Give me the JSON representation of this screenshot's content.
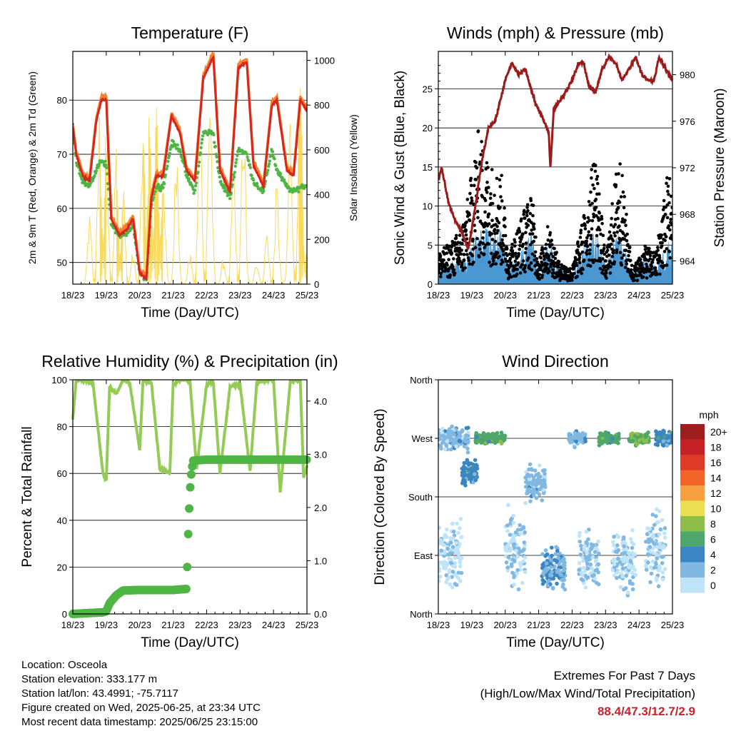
{
  "x_tick_labels": [
    "18/23",
    "19/23",
    "20/23",
    "21/23",
    "22/23",
    "23/23",
    "24/23",
    "25/23"
  ],
  "chart_data": [
    {
      "type": "line",
      "title": "Temperature (F)",
      "xlabel": "Time (Day/UTC)",
      "ylabel": "2m & 9m T (Red, Orange) & 2m Td (Green)",
      "y2label": "Solar Insolation (Yellow)",
      "xlim": [
        0,
        7
      ],
      "ylim": [
        46,
        89
      ],
      "y2lim": [
        0,
        1040
      ],
      "yticks": [
        50,
        60,
        70,
        80
      ],
      "y2ticks": [
        0,
        200,
        400,
        600,
        800,
        1000
      ],
      "grid": true,
      "colors": {
        "t2m": "#d7261e",
        "t9m": "#f2822f",
        "td": "#4fb544",
        "solar": "#f7d64a"
      },
      "series": [
        {
          "name": "2m T",
          "axis": "left",
          "x": [
            0,
            0.1,
            0.3,
            0.5,
            0.7,
            0.85,
            1.0,
            1.15,
            1.4,
            1.6,
            1.8,
            2.0,
            2.2,
            2.35,
            2.5,
            2.7,
            2.95,
            3.2,
            3.4,
            3.65,
            3.9,
            4.2,
            4.4,
            4.7,
            4.95,
            5.2,
            5.4,
            5.7,
            5.95,
            6.1,
            6.4,
            6.6,
            6.8,
            7.0
          ],
          "y": [
            75,
            70,
            66,
            65,
            76,
            80,
            80,
            58,
            55,
            56,
            58,
            48,
            47,
            62,
            66,
            66,
            77,
            74,
            67,
            65,
            84,
            88,
            67,
            63,
            86,
            87,
            68,
            64,
            79,
            80,
            67,
            66,
            80,
            78
          ]
        },
        {
          "name": "2m Td",
          "axis": "left",
          "x": [
            0,
            0.1,
            0.3,
            0.5,
            0.7,
            0.85,
            1.0,
            1.15,
            1.4,
            1.6,
            1.8,
            2.0,
            2.2,
            2.35,
            2.5,
            2.7,
            2.95,
            3.2,
            3.4,
            3.65,
            3.9,
            4.2,
            4.4,
            4.7,
            4.95,
            5.2,
            5.4,
            5.7,
            5.95,
            6.1,
            6.4,
            6.6,
            6.8,
            7.0
          ],
          "y": [
            75,
            69,
            65,
            64,
            67,
            69,
            68,
            57,
            55,
            55,
            57,
            48,
            47,
            61,
            64,
            64,
            72,
            71,
            66,
            63,
            74,
            74,
            65,
            62,
            71,
            70,
            65,
            63,
            71,
            67,
            64,
            63,
            64,
            64
          ]
        },
        {
          "name": "Solar Insolation",
          "axis": "right",
          "peaks_x": [
            0.5,
            0.8,
            1.0,
            1.3,
            1.5,
            1.8,
            2.1,
            2.3,
            2.5,
            2.7,
            3.1,
            3.5,
            3.8,
            4.1,
            4.5,
            4.8,
            5.1,
            5.5,
            5.8,
            6.1,
            6.5,
            6.8,
            6.95
          ],
          "peaks_y": [
            320,
            850,
            740,
            700,
            500,
            150,
            780,
            900,
            920,
            620,
            700,
            150,
            870,
            1000,
            120,
            600,
            870,
            120,
            260,
            470,
            820,
            1000,
            150
          ]
        }
      ]
    },
    {
      "type": "scatter",
      "title": "Winds (mph) & Pressure (mb)",
      "xlabel": "Time (Day/UTC)",
      "ylabel": "Sonic Wind & Gust (Blue, Black)",
      "y2label": "Station Pressure (Maroon)",
      "xlim": [
        0,
        7
      ],
      "ylim": [
        0,
        29.8
      ],
      "y2lim": [
        962,
        982
      ],
      "yticks": [
        0,
        5,
        10,
        15,
        20,
        25
      ],
      "y2ticks": [
        964,
        968,
        972,
        976,
        980
      ],
      "grid": true,
      "colors": {
        "wind": "#4a97d1",
        "gust": "#000000",
        "pressure": "#9b1b1b"
      },
      "series": [
        {
          "name": "Station Pressure",
          "axis": "right",
          "x": [
            0,
            0.1,
            0.3,
            0.5,
            0.7,
            0.9,
            1.1,
            1.3,
            1.5,
            1.7,
            2.0,
            2.2,
            2.4,
            2.6,
            2.9,
            3.1,
            3.3,
            3.35,
            3.45,
            3.55,
            3.7,
            4.0,
            4.2,
            4.35,
            4.5,
            4.7,
            4.9,
            5.1,
            5.3,
            5.5,
            5.7,
            5.9,
            6.1,
            6.25,
            6.45,
            6.6,
            6.8,
            7.0
          ],
          "y": [
            971,
            972,
            969,
            967.5,
            966.5,
            965,
            968.5,
            972.5,
            975.5,
            976,
            979.5,
            981,
            980,
            980.5,
            977.5,
            976.5,
            975,
            972,
            977,
            977.5,
            978,
            979.5,
            981,
            981,
            979,
            978.5,
            980.5,
            981.5,
            981,
            979.5,
            980.5,
            981.5,
            980,
            979.5,
            979.5,
            981.5,
            980.5,
            979.5
          ]
        },
        {
          "name": "Sonic Wind",
          "axis": "left",
          "envelope_x": [
            0,
            0.5,
            0.8,
            1.2,
            1.5,
            1.9,
            2.1,
            2.5,
            2.8,
            3.0,
            3.3,
            3.6,
            4.0,
            4.4,
            4.7,
            5.0,
            5.4,
            5.8,
            6.2,
            6.5,
            6.9,
            7.0
          ],
          "envelope_y": [
            2,
            2.5,
            3,
            6,
            6,
            6,
            2,
            4,
            6,
            1,
            5,
            2,
            1,
            5,
            6,
            2,
            6,
            1,
            3,
            2,
            5,
            4
          ]
        },
        {
          "name": "Gust",
          "axis": "left",
          "envelope_x": [
            0,
            0.5,
            0.8,
            1.2,
            1.5,
            1.9,
            2.1,
            2.5,
            2.8,
            3.0,
            3.3,
            3.6,
            4.0,
            4.4,
            4.7,
            5.0,
            5.4,
            5.8,
            6.2,
            6.5,
            6.9,
            7.0
          ],
          "envelope_y": [
            4,
            6,
            9,
            20,
            16,
            14,
            4,
            9,
            12,
            3,
            8,
            3,
            2,
            10,
            18,
            3,
            18,
            2,
            5,
            4,
            16,
            10
          ]
        }
      ]
    },
    {
      "type": "line",
      "title": "Relative Humidity (%) & Precipitation (in)",
      "xlabel": "Time (Day/UTC)",
      "ylabel": "Percent & Total Rainfall",
      "xlim": [
        0,
        7
      ],
      "ylim": [
        0,
        100
      ],
      "y2lim": [
        0,
        4.4
      ],
      "yticks": [
        0,
        20,
        40,
        60,
        80,
        100
      ],
      "y2ticks": [
        0.0,
        1.0,
        2.0,
        3.0,
        4.0
      ],
      "grid": true,
      "colors": {
        "rh": "#93cb56",
        "precip": "#4fb544"
      },
      "series": [
        {
          "name": "Relative Humidity",
          "axis": "left",
          "x": [
            0,
            0.1,
            0.4,
            0.6,
            0.9,
            1.0,
            1.1,
            1.3,
            1.5,
            1.7,
            2.0,
            2.1,
            2.35,
            2.6,
            2.9,
            3.0,
            3.2,
            3.5,
            3.7,
            4.0,
            4.2,
            4.4,
            4.7,
            5.0,
            5.3,
            5.5,
            5.8,
            6.0,
            6.2,
            6.5,
            6.8,
            6.9,
            7.0
          ],
          "y": [
            83,
            100,
            100,
            99,
            60,
            57,
            97,
            94,
            100,
            99,
            70,
            100,
            99,
            62,
            60,
            98,
            100,
            100,
            62,
            98,
            99,
            60,
            97,
            98,
            61,
            99,
            100,
            100,
            52,
            99,
            100,
            58,
            63
          ]
        },
        {
          "name": "Precipitation",
          "axis": "right",
          "x": [
            0,
            0.9,
            1.0,
            1.1,
            1.3,
            1.5,
            2.0,
            2.5,
            3.0,
            3.4,
            3.45,
            3.5,
            3.55,
            3.6,
            4.0,
            5.0,
            6.0,
            7.0
          ],
          "y": [
            0,
            0.03,
            0.05,
            0.2,
            0.35,
            0.44,
            0.45,
            0.45,
            0.45,
            0.47,
            1.5,
            2.3,
            2.7,
            2.88,
            2.9,
            2.9,
            2.9,
            2.9
          ]
        }
      ]
    },
    {
      "type": "scatter",
      "title": "Wind Direction",
      "xlabel": "Time (Day/UTC)",
      "ylabel": "Direction (Colored By Speed)",
      "xlim": [
        0,
        7
      ],
      "yticks": [
        "North",
        "East",
        "South",
        "West",
        "North"
      ],
      "yticks_deg": [
        0,
        90,
        180,
        270,
        360
      ],
      "grid": true,
      "colorbar": {
        "unit": "mph",
        "labels": [
          "20+",
          "18",
          "16",
          "14",
          "12",
          "10",
          "8",
          "6",
          "4",
          "2",
          "0"
        ],
        "colors": [
          "#9e1d1f",
          "#c42227",
          "#df3a27",
          "#f16327",
          "#f7a041",
          "#eadf52",
          "#8dbe4a",
          "#4ea66b",
          "#3b86c2",
          "#80b8e1",
          "#bfe4f7"
        ]
      },
      "clusters": [
        {
          "x": [
            0,
            0.9
          ],
          "deg_center": 270,
          "deg_spread": 25,
          "speed": 2
        },
        {
          "x": [
            0,
            0.7
          ],
          "deg_center": 90,
          "deg_spread": 70,
          "speed": 0.5
        },
        {
          "x": [
            0.7,
            1.2
          ],
          "deg_center": 215,
          "deg_spread": 25,
          "speed": 4
        },
        {
          "x": [
            1.1,
            2.0
          ],
          "deg_center": 270,
          "deg_spread": 12,
          "speed": 6
        },
        {
          "x": [
            2.0,
            2.6
          ],
          "deg_center": 100,
          "deg_spread": 70,
          "speed": 1
        },
        {
          "x": [
            2.6,
            3.2
          ],
          "deg_center": 200,
          "deg_spread": 40,
          "speed": 2
        },
        {
          "x": [
            3.1,
            3.8
          ],
          "deg_center": 70,
          "deg_spread": 45,
          "speed": 3
        },
        {
          "x": [
            3.9,
            4.4
          ],
          "deg_center": 270,
          "deg_spread": 15,
          "speed": 2
        },
        {
          "x": [
            4.2,
            4.8
          ],
          "deg_center": 80,
          "deg_spread": 60,
          "speed": 1
        },
        {
          "x": [
            4.8,
            5.4
          ],
          "deg_center": 270,
          "deg_spread": 12,
          "speed": 6
        },
        {
          "x": [
            5.2,
            5.9
          ],
          "deg_center": 80,
          "deg_spread": 60,
          "speed": 1
        },
        {
          "x": [
            5.7,
            6.3
          ],
          "deg_center": 270,
          "deg_spread": 12,
          "speed": 7
        },
        {
          "x": [
            6.2,
            6.8
          ],
          "deg_center": 100,
          "deg_spread": 80,
          "speed": 1
        },
        {
          "x": [
            6.5,
            7.0
          ],
          "deg_center": 270,
          "deg_spread": 15,
          "speed": 4
        }
      ]
    }
  ],
  "footer": {
    "location": "Location: Osceola",
    "elevation": "Station elevation: 333.177 m",
    "latlon": "Station lat/lon: 43.4991; -75.7117",
    "created": "Figure created on Wed, 2025-06-25, at 23:34 UTC",
    "recent": "Most recent data timestamp: 2025/06/25 23:15:00",
    "extremes_title": "Extremes For Past 7 Days",
    "extremes_sub": "(High/Low/Max Wind/Total Precipitation)",
    "extremes_values": "88.4/47.3/12.7/2.9"
  }
}
